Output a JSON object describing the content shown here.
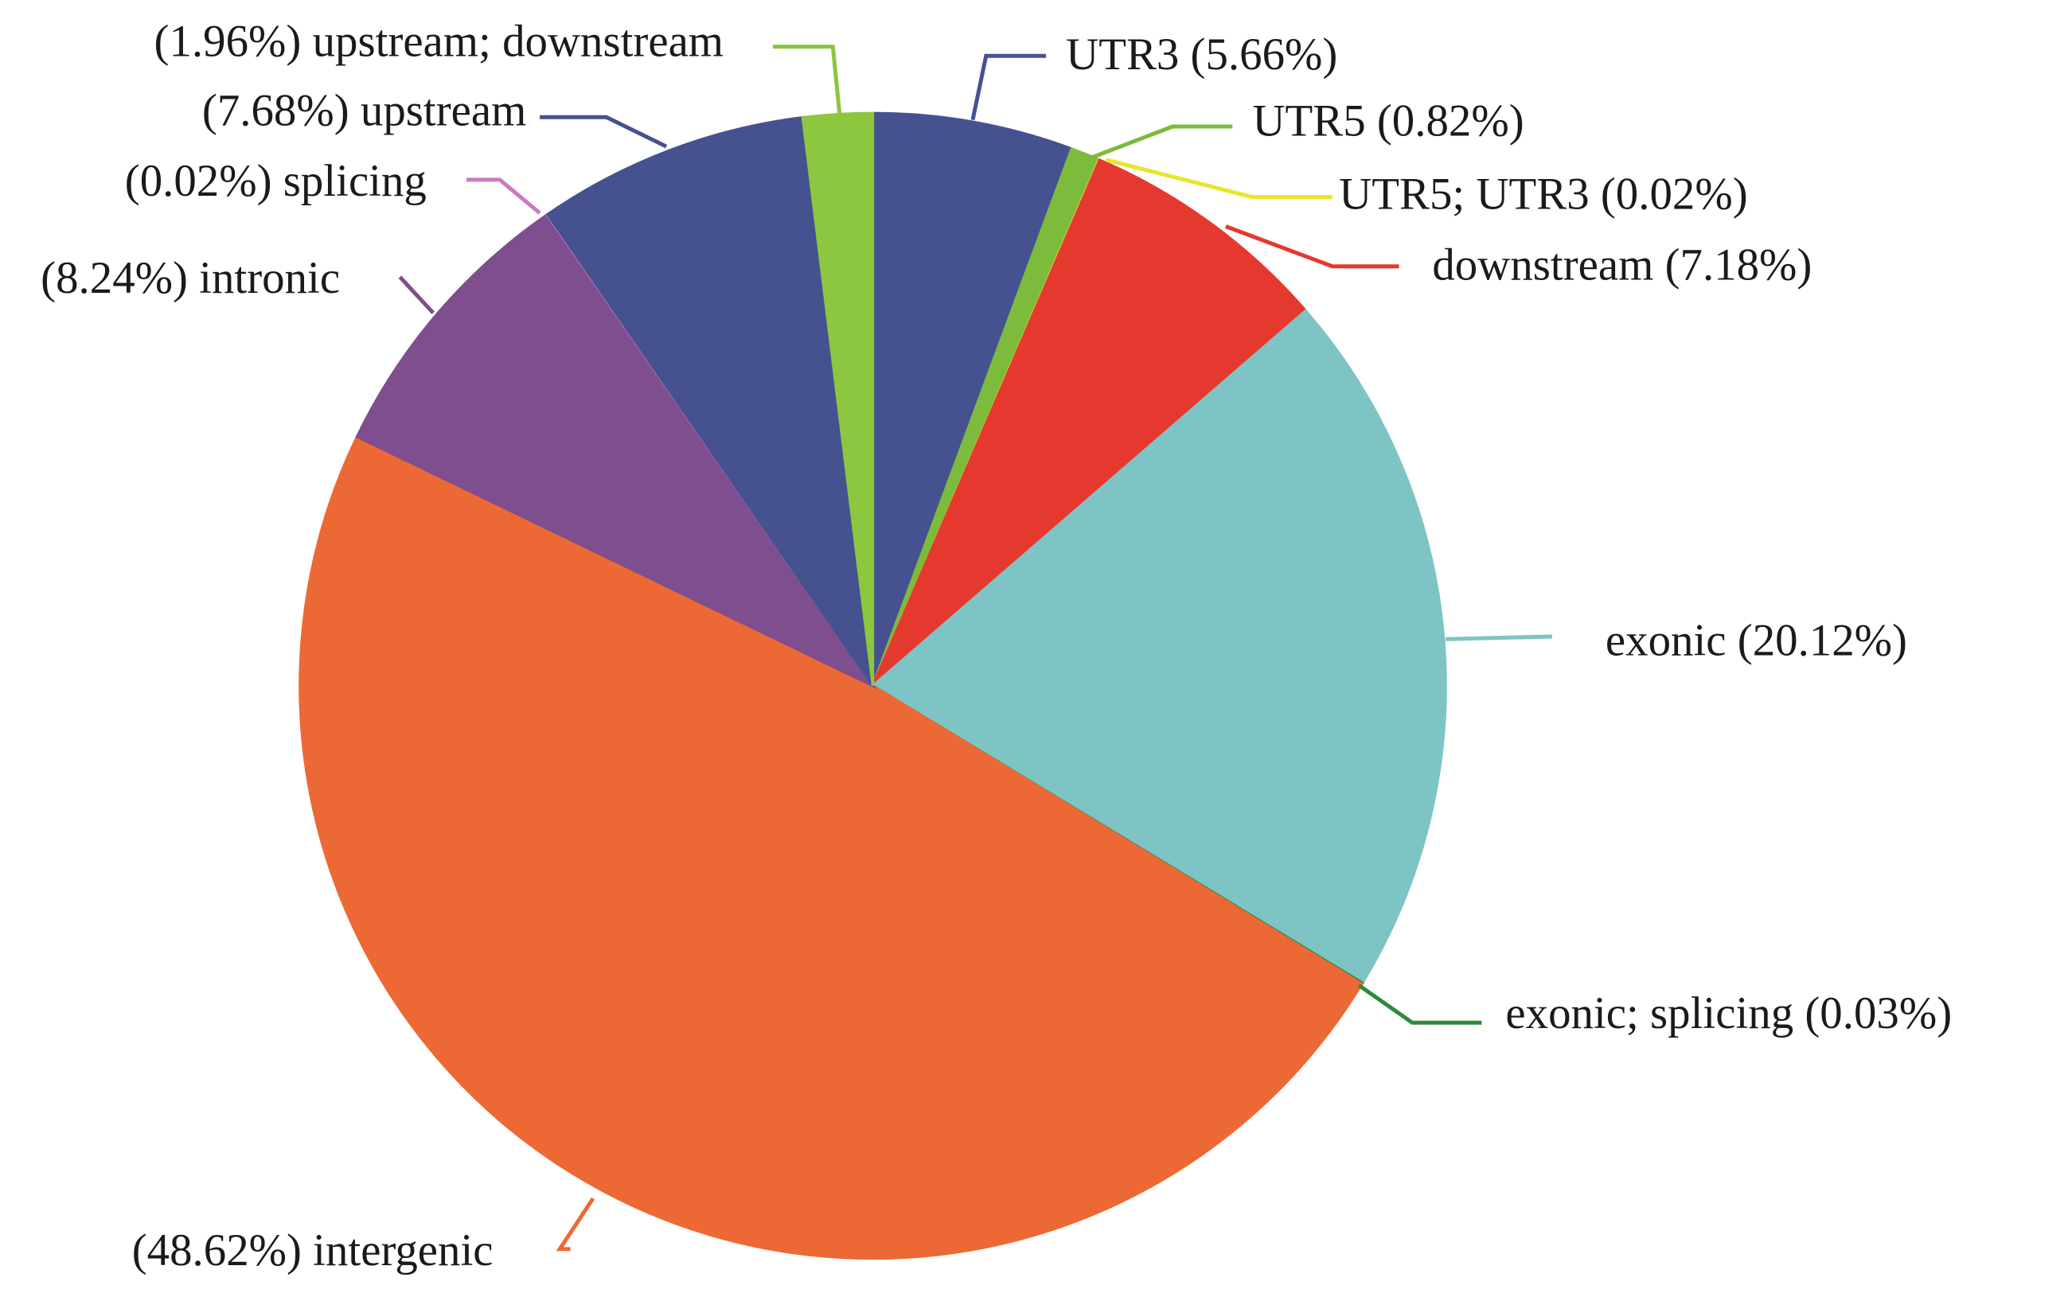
{
  "chart_data": {
    "type": "pie",
    "title": "",
    "slices": [
      {
        "label": "UTR3 (5.66%)",
        "category": "UTR3",
        "value": 5.66,
        "color": "#465190"
      },
      {
        "label": "UTR5 (0.82%)",
        "category": "UTR5",
        "value": 0.82,
        "color": "#7cbb3c"
      },
      {
        "label": "UTR5; UTR3 (0.02%)",
        "category": "UTR5; UTR3",
        "value": 0.02,
        "color": "#e6e62a"
      },
      {
        "label": "downstream (7.18%)",
        "category": "downstream",
        "value": 7.18,
        "color": "#e5392f"
      },
      {
        "label": "exonic (20.12%)",
        "category": "exonic",
        "value": 20.12,
        "color": "#7fc4c4"
      },
      {
        "label": "exonic; splicing (0.03%)",
        "category": "exonic; splicing",
        "value": 0.03,
        "color": "#2e8b3c"
      },
      {
        "label": "(48.62%) intergenic",
        "category": "intergenic",
        "value": 48.62,
        "color": "#ec6935"
      },
      {
        "label": "(8.24%) intronic",
        "category": "intronic",
        "value": 8.24,
        "color": "#7f4e8e"
      },
      {
        "label": "(0.02%) splicing",
        "category": "splicing",
        "value": 0.02,
        "color": "#c87cc0"
      },
      {
        "label": "(7.68%) upstream",
        "category": "upstream",
        "value": 7.68,
        "color": "#465190"
      },
      {
        "label": "(1.96%) upstream; downstream",
        "category": "upstream; downstream",
        "value": 1.96,
        "color": "#8dc63f"
      }
    ],
    "start": "top",
    "direction": "clockwise",
    "legend": "none (leader-line labels)"
  }
}
